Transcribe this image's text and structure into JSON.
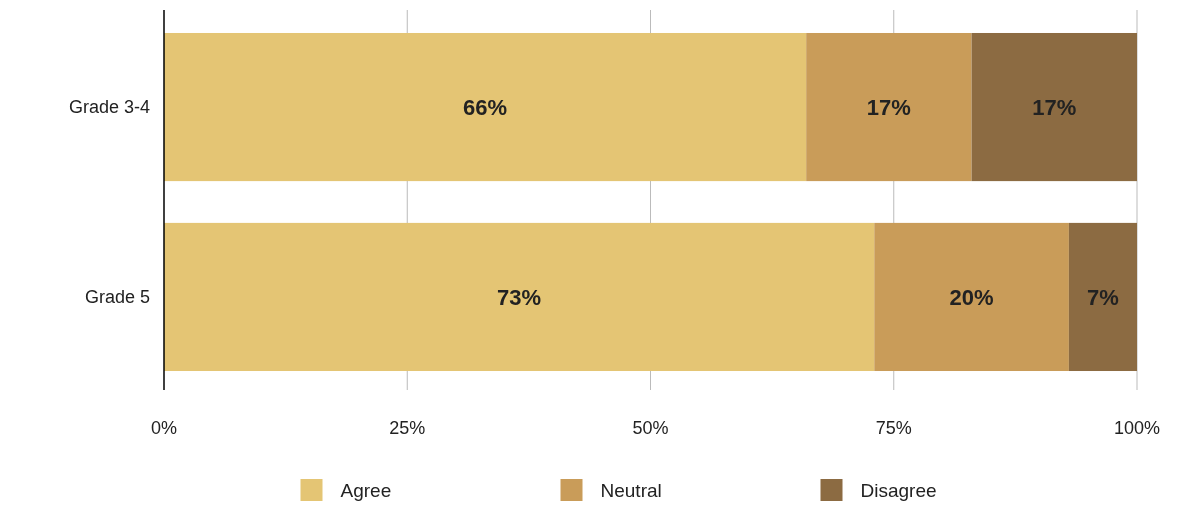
{
  "chart_data": {
    "type": "bar",
    "orientation": "horizontal",
    "stacked": true,
    "categories": [
      "Grade 3-4",
      "Grade 5"
    ],
    "series": [
      {
        "name": "Agree",
        "color": "#e4c574",
        "values": [
          66,
          73
        ],
        "value_labels": [
          "66%",
          "73%"
        ]
      },
      {
        "name": "Neutral",
        "color": "#c99c59",
        "values": [
          17,
          20
        ],
        "value_labels": [
          "17%",
          "20%"
        ]
      },
      {
        "name": "Disagree",
        "color": "#8c6b42",
        "values": [
          17,
          7
        ],
        "value_labels": [
          "17%",
          "7%"
        ]
      }
    ],
    "xlim": [
      0,
      100
    ],
    "xticks": [
      {
        "value": 0,
        "label": "0%"
      },
      {
        "value": 25,
        "label": "25%"
      },
      {
        "value": 50,
        "label": "50%"
      },
      {
        "value": 75,
        "label": "75%"
      },
      {
        "value": 100,
        "label": "100%"
      }
    ],
    "grid": "x",
    "legend": "bottom"
  }
}
